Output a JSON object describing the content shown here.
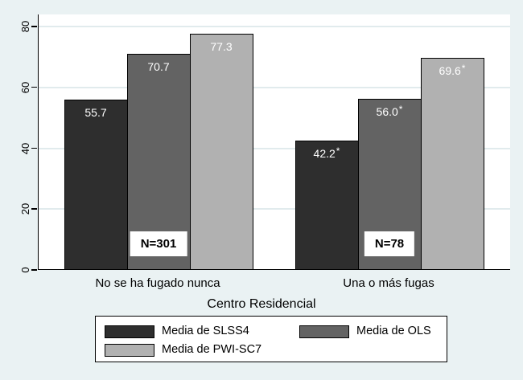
{
  "figure": {
    "background_color": "#eaf2f3",
    "plot_background_color": "#ffffff",
    "grid_color": "#e1ebed",
    "axis_color": "#000000"
  },
  "chart_data": {
    "type": "bar",
    "title": "",
    "xlabel": "Centro Residencial",
    "ylabel": "",
    "ylim": [
      0,
      80
    ],
    "yticks": [
      0,
      20,
      40,
      60,
      80
    ],
    "grid": true,
    "legend_position": "bottom",
    "categories": [
      "No se ha fugado nunca",
      "Una o más fugas"
    ],
    "series": [
      {
        "name": "Media de SLSS4",
        "color": "#2e2e2e",
        "texture": "dark",
        "values": [
          55.7,
          42.2
        ],
        "value_labels": [
          "55.7",
          "42.2*"
        ]
      },
      {
        "name": "Media de OLS",
        "color": "#636363",
        "texture": "dark",
        "values": [
          70.7,
          56.0
        ],
        "value_labels": [
          "70.7",
          "56.0*"
        ]
      },
      {
        "name": "Media de PWI-SC7",
        "color": "#b1b1b1",
        "texture": "light",
        "values": [
          77.3,
          69.6
        ],
        "value_labels": [
          "77.3",
          "69.6*"
        ]
      }
    ],
    "annotations": [
      {
        "text": "N=301",
        "category_index": 0
      },
      {
        "text": "N=78",
        "category_index": 1
      }
    ]
  }
}
